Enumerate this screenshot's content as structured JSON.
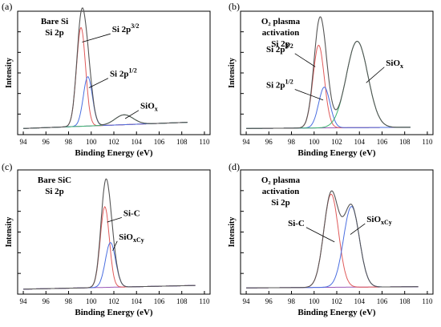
{
  "chart_data": [
    {
      "type": "line",
      "panel_label": "(a)",
      "title_lines": [
        "Bare Si",
        "Si 2p"
      ],
      "xlabel": "Binding Energy (eV)",
      "ylabel": "Intensity",
      "xlim": [
        93.5,
        110.5
      ],
      "xticks": [
        94,
        96,
        98,
        100,
        102,
        104,
        106,
        108,
        110
      ],
      "x_range": [
        94,
        108.5
      ],
      "baseline": [
        0.05,
        0.1
      ],
      "peaks": [
        {
          "name": "Si 2p3/2",
          "center": 99.1,
          "height": 0.8,
          "width": 0.4,
          "color": "#e05a5a"
        },
        {
          "name": "Si 2p1/2",
          "center": 99.7,
          "height": 0.4,
          "width": 0.4,
          "color": "#4a6ee0"
        },
        {
          "name": "SiOx",
          "center": 102.9,
          "height": 0.08,
          "width": 0.8,
          "color": "#3cb371"
        }
      ],
      "envelope_color": "#555555",
      "annotations": [
        {
          "label": "Si 2p",
          "sup": "3/2",
          "sub": "",
          "x": 99.2,
          "y": 0.75,
          "tx": 101.7,
          "ty": 0.83
        },
        {
          "label": "Si 2p",
          "sup": "1/2",
          "sub": "",
          "x": 99.8,
          "y": 0.38,
          "tx": 101.5,
          "ty": 0.47
        },
        {
          "label": "SiO",
          "sup": "",
          "sub": "x",
          "x": 103.0,
          "y": 0.13,
          "tx": 104.2,
          "ty": 0.21
        }
      ]
    },
    {
      "type": "line",
      "panel_label": "(b)",
      "title_lines": [
        "O₂ plasma",
        "activation",
        "Si 2p"
      ],
      "xlabel": "Binding Energy (eV)",
      "ylabel": "Intensity",
      "xlim": [
        93.5,
        110.5
      ],
      "xticks": [
        94,
        96,
        98,
        100,
        102,
        104,
        106,
        108,
        110
      ],
      "x_range": [
        94,
        108.5
      ],
      "baseline": [
        0.05,
        0.06
      ],
      "peaks": [
        {
          "name": "Si 2p3/2",
          "center": 100.4,
          "height": 0.67,
          "width": 0.5,
          "color": "#e05a5a"
        },
        {
          "name": "Si 2p1/2",
          "center": 100.9,
          "height": 0.33,
          "width": 0.5,
          "color": "#4a6ee0"
        },
        {
          "name": "SiOx",
          "center": 103.8,
          "height": 0.7,
          "width": 0.95,
          "color": "#3cb371"
        }
      ],
      "envelope_color": "#555555",
      "annotations": [
        {
          "label": "Si 2p",
          "sup": "3/2",
          "sub": "",
          "x": 100.1,
          "y": 0.55,
          "tx": 98.3,
          "ty": 0.67
        },
        {
          "label": "Si 2p",
          "sup": "1/2",
          "sub": "",
          "x": 100.8,
          "y": 0.28,
          "tx": 98.3,
          "ty": 0.38
        },
        {
          "label": "SiO",
          "sup": "",
          "sub": "x",
          "x": 104.6,
          "y": 0.42,
          "tx": 106.2,
          "ty": 0.56
        }
      ]
    },
    {
      "type": "line",
      "panel_label": "(c)",
      "title_lines": [
        "Bare SiC",
        "Si 2p"
      ],
      "xlabel": "Binding Energy (eV)",
      "ylabel": "Intensity",
      "xlim": [
        93.5,
        110.5
      ],
      "xticks": [
        94,
        96,
        98,
        100,
        102,
        104,
        106,
        108,
        110
      ],
      "x_range": [
        94,
        109.2
      ],
      "baseline": [
        0.04,
        0.07
      ],
      "peaks": [
        {
          "name": "Si-C",
          "center": 101.2,
          "height": 0.65,
          "width": 0.4,
          "color": "#e05a5a"
        },
        {
          "name": "SiOxCy",
          "center": 101.7,
          "height": 0.36,
          "width": 0.45,
          "color": "#4a6ee0"
        }
      ],
      "envelope_color": "#555555",
      "annotations": [
        {
          "label": "Si-C",
          "sup": "",
          "sub": "",
          "x": 101.4,
          "y": 0.58,
          "tx": 102.7,
          "ty": 0.63
        },
        {
          "label": "SiO",
          "sup": "",
          "sub": "xCy",
          "x": 101.9,
          "y": 0.35,
          "tx": 102.3,
          "ty": 0.44
        }
      ]
    },
    {
      "type": "line",
      "panel_label": "(d)",
      "title_lines": [
        "O₂ plasma",
        "activation",
        "Si 2p"
      ],
      "xlabel": "Binding Energy (eV)",
      "ylabel": "Intensity",
      "xlim": [
        93.5,
        110.5
      ],
      "xticks": [
        94,
        96,
        98,
        100,
        102,
        104,
        106,
        108,
        110
      ],
      "x_range": [
        94,
        109.2
      ],
      "baseline": [
        0.05,
        0.06
      ],
      "peaks": [
        {
          "name": "Si-C",
          "center": 101.5,
          "height": 0.75,
          "width": 0.65,
          "color": "#e05a5a"
        },
        {
          "name": "SiOxCy",
          "center": 103.3,
          "height": 0.65,
          "width": 0.7,
          "color": "#4a6ee0"
        }
      ],
      "envelope_color": "#555555",
      "annotations": [
        {
          "label": "Si-C",
          "sup": "",
          "sub": "",
          "x": 101.8,
          "y": 0.42,
          "tx": 99.3,
          "ty": 0.55
        },
        {
          "label": "SiO",
          "sup": "",
          "sub": "xCy",
          "x": 103.2,
          "y": 0.48,
          "tx": 104.5,
          "ty": 0.58
        }
      ]
    }
  ]
}
